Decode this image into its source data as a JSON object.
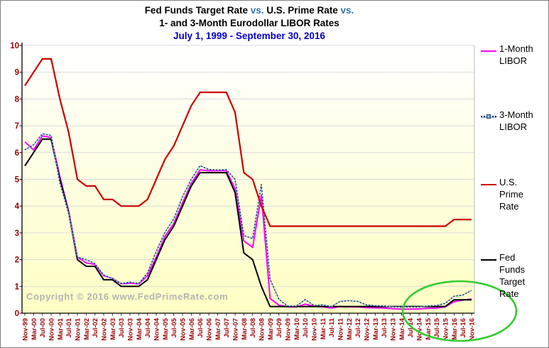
{
  "title": {
    "line1_a": "Fed Funds Target Rate ",
    "line1_vs1": "vs.",
    "line1_b": " U.S. Prime Rate ",
    "line1_vs2": "vs.",
    "line2": "1- and 3-Month Eurodollar LIBOR Rates",
    "line3": "July 1, 1999 - September 30, 2016"
  },
  "watermark": "Copyright © 2016 www.FedPrimeRate.com",
  "colors": {
    "accent_vs": "#2e75b6",
    "date_blue": "#0000cc",
    "axis_labels": "#990000",
    "watermark": "#b3b3b3",
    "grid": "#d9d9d9",
    "plot_border": "#b8b8b8",
    "plot_bg_top": "#ffffff",
    "plot_bg_bottom": "#ffffc4",
    "axis_line": "#000000",
    "highlight_green": "#33cc33"
  },
  "chart_data": {
    "type": "line",
    "title": "Fed Funds Target Rate vs. U.S. Prime Rate vs. 1- and 3-Month Eurodollar LIBOR Rates",
    "subtitle": "July 1, 1999 - September 30, 2016",
    "ylim": [
      0,
      10
    ],
    "yticks": [
      0,
      1,
      2,
      3,
      4,
      5,
      6,
      7,
      8,
      9,
      10
    ],
    "grid": "horizontal",
    "legend_position": "right",
    "categories": [
      "Nov-99",
      "Mar-00",
      "Jul-00",
      "Nov-00",
      "Mar-01",
      "Jul-01",
      "Nov-01",
      "Mar-02",
      "Jul-02",
      "Nov-02",
      "Mar-03",
      "Jul-03",
      "Nov-03",
      "Mar-04",
      "Jul-04",
      "Nov-04",
      "Mar-05",
      "Jul-05",
      "Nov-05",
      "Mar-06",
      "Jul-06",
      "Nov-06",
      "Mar-07",
      "Jul-07",
      "Nov-07",
      "Mar-08",
      "Jul-08",
      "Nov-08",
      "Mar-09",
      "Jul-09",
      "Nov-09",
      "Mar-10",
      "Jul-10",
      "Nov-10",
      "Mar-11",
      "Jul-11",
      "Nov-11",
      "Mar-12",
      "Jul-12",
      "Nov-12",
      "Mar-13",
      "Jul-13",
      "Nov-13",
      "Mar-14",
      "Jul-14",
      "Nov-14",
      "Mar-15",
      "Jul-15",
      "Nov-15",
      "Mar-16",
      "Jul-16",
      "Nov-16"
    ],
    "series": [
      {
        "name": "1-Month LIBOR",
        "color": "#ff00ff",
        "style": "solid",
        "width": 2,
        "values": [
          6.4,
          6.1,
          6.62,
          6.56,
          5.1,
          3.8,
          2.1,
          1.88,
          1.82,
          1.4,
          1.3,
          1.1,
          1.12,
          1.09,
          1.4,
          2.1,
          2.87,
          3.35,
          4.12,
          4.85,
          5.35,
          5.32,
          5.32,
          5.32,
          4.65,
          2.7,
          2.46,
          4.4,
          0.55,
          0.3,
          0.24,
          0.23,
          0.34,
          0.26,
          0.24,
          0.19,
          0.25,
          0.24,
          0.24,
          0.21,
          0.2,
          0.19,
          0.17,
          0.15,
          0.15,
          0.16,
          0.18,
          0.19,
          0.24,
          0.43,
          0.49,
          0.53
        ]
      },
      {
        "name": "3-Month LIBOR",
        "color": "#17375e",
        "underlay_color": "#8db4e2",
        "style": "dotted",
        "width": 1.7,
        "values": [
          6.1,
          6.29,
          6.7,
          6.64,
          4.87,
          3.72,
          2.1,
          2.0,
          1.85,
          1.43,
          1.29,
          1.11,
          1.16,
          1.11,
          1.5,
          2.31,
          3.02,
          3.52,
          4.35,
          5.0,
          5.51,
          5.37,
          5.35,
          5.36,
          5.0,
          2.9,
          2.79,
          4.8,
          1.27,
          0.52,
          0.27,
          0.27,
          0.51,
          0.29,
          0.31,
          0.25,
          0.44,
          0.47,
          0.44,
          0.31,
          0.28,
          0.27,
          0.24,
          0.23,
          0.23,
          0.23,
          0.27,
          0.29,
          0.37,
          0.63,
          0.68,
          0.85
        ]
      },
      {
        "name": "U.S. Prime Rate",
        "color": "#cc0000",
        "style": "solid",
        "width": 2.2,
        "values": [
          8.5,
          9.0,
          9.5,
          9.5,
          8.0,
          6.75,
          5.0,
          4.75,
          4.75,
          4.25,
          4.25,
          4.0,
          4.0,
          4.0,
          4.25,
          5.0,
          5.75,
          6.25,
          7.0,
          7.75,
          8.25,
          8.25,
          8.25,
          8.25,
          7.5,
          5.25,
          5.0,
          4.0,
          3.25,
          3.25,
          3.25,
          3.25,
          3.25,
          3.25,
          3.25,
          3.25,
          3.25,
          3.25,
          3.25,
          3.25,
          3.25,
          3.25,
          3.25,
          3.25,
          3.25,
          3.25,
          3.25,
          3.25,
          3.25,
          3.5,
          3.5,
          3.5
        ]
      },
      {
        "name": "Fed Funds Target Rate",
        "color": "#000000",
        "style": "solid",
        "width": 2,
        "values": [
          5.5,
          6.0,
          6.5,
          6.5,
          5.0,
          3.75,
          2.0,
          1.75,
          1.75,
          1.25,
          1.25,
          1.0,
          1.0,
          1.0,
          1.25,
          2.0,
          2.75,
          3.25,
          4.0,
          4.75,
          5.25,
          5.25,
          5.25,
          5.25,
          4.5,
          2.25,
          2.0,
          1.0,
          0.25,
          0.25,
          0.25,
          0.25,
          0.25,
          0.25,
          0.25,
          0.25,
          0.25,
          0.25,
          0.25,
          0.25,
          0.25,
          0.25,
          0.25,
          0.25,
          0.25,
          0.25,
          0.25,
          0.25,
          0.25,
          0.5,
          0.5,
          0.5
        ]
      }
    ],
    "annotation": {
      "shape": "ellipse",
      "color": "#33cc33"
    }
  }
}
